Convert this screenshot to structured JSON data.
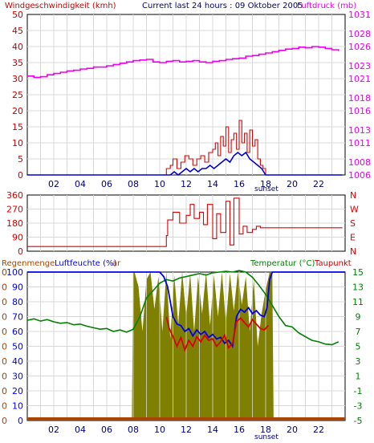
{
  "header": {
    "wind_label": "Windgeschwindigkeit (kmh)",
    "title": "Current last 24 hours : 09 Oktober 2005",
    "pressure_label": "Luftdruck (mb)"
  },
  "panel3_header": {
    "rain_label": "Regenmenge",
    "humidity_label": "Luftfeuchte (%)",
    "overlap_glyph": "ar",
    "temp_label": "Temperatur (°C)",
    "dew_label": "Taupunkt"
  },
  "x_ticks": [
    "02",
    "04",
    "06",
    "08",
    "10",
    "12",
    "14",
    "16",
    "18",
    "20",
    "22"
  ],
  "sunset_label": "sunset",
  "colors": {
    "wind_axis": "#cc0000",
    "pressure": "#ee00ee",
    "wind_avg": "#0000cc",
    "wind_gust": "#dd0000",
    "direction": "#dd0000",
    "humidity_fill": "#808000",
    "temperature": "#008000",
    "dewpoint": "#dd0000",
    "humidity_line": "#0000ee",
    "rain": "#aa4400"
  },
  "chart_data": [
    {
      "type": "line",
      "name": "wind-and-pressure",
      "x_unit": "hour",
      "xlim": [
        0,
        24
      ],
      "left_axis": {
        "label": "Windgeschwindigkeit (kmh)",
        "ylim": [
          0,
          50
        ],
        "ticks": [
          0,
          5,
          10,
          15,
          20,
          25,
          30,
          35,
          40,
          45,
          50
        ]
      },
      "right_axis": {
        "label": "Luftdruck (mb)",
        "ylim": [
          1006,
          1031
        ],
        "ticks": [
          1006,
          1008,
          1011,
          1013,
          1016,
          1018,
          1021,
          1023,
          1026,
          1028,
          1031
        ]
      },
      "series": [
        {
          "name": "Luftdruck (mb)",
          "axis": "right",
          "x": [
            0,
            0.5,
            1,
            1.5,
            2,
            2.5,
            3,
            3.5,
            4,
            4.5,
            5,
            5.5,
            6,
            6.5,
            7,
            7.5,
            8,
            8.5,
            9,
            9.5,
            10,
            10.5,
            11,
            11.5,
            12,
            12.5,
            13,
            13.5,
            14,
            14.5,
            15,
            15.5,
            16,
            16.5,
            17,
            17.5,
            18,
            18.5,
            19,
            19.5,
            20,
            20.5,
            21,
            21.5,
            22,
            22.5,
            23,
            23.5
          ],
          "y": [
            1021.4,
            1021.2,
            1021.3,
            1021.6,
            1021.8,
            1022,
            1022.2,
            1022.3,
            1022.5,
            1022.6,
            1022.8,
            1022.8,
            1023,
            1023.2,
            1023.4,
            1023.6,
            1023.8,
            1023.9,
            1024,
            1023.6,
            1023.5,
            1023.7,
            1023.8,
            1023.6,
            1023.7,
            1023.8,
            1023.6,
            1023.5,
            1023.7,
            1023.8,
            1024,
            1024.1,
            1024.2,
            1024.5,
            1024.6,
            1024.8,
            1025,
            1025.2,
            1025.4,
            1025.6,
            1025.7,
            1025.9,
            1025.8,
            1026,
            1025.9,
            1025.7,
            1025.5,
            1025.3
          ]
        },
        {
          "name": "wind-gust",
          "axis": "left",
          "x": [
            0,
            10.3,
            10.5,
            10.8,
            11,
            11.3,
            11.6,
            11.9,
            12.2,
            12.5,
            12.8,
            13.1,
            13.4,
            13.7,
            14,
            14.2,
            14.4,
            14.6,
            14.8,
            15,
            15.2,
            15.4,
            15.6,
            15.8,
            16,
            16.2,
            16.4,
            16.6,
            16.8,
            17,
            17.2,
            17.4,
            17.6,
            17.8,
            18,
            23.8
          ],
          "y": [
            0,
            0,
            2,
            3,
            5,
            2,
            4,
            6,
            5,
            3,
            5,
            6,
            4,
            7,
            8,
            10,
            6,
            12,
            9,
            15,
            7,
            11,
            13,
            8,
            17,
            10,
            13,
            7,
            14,
            9,
            11,
            5,
            3,
            2,
            0,
            0
          ]
        },
        {
          "name": "wind-average",
          "axis": "left",
          "x": [
            0,
            10.8,
            11.1,
            11.4,
            11.7,
            12,
            12.3,
            12.6,
            12.9,
            13.2,
            13.5,
            13.8,
            14.1,
            14.4,
            14.7,
            15,
            15.3,
            15.6,
            15.9,
            16.2,
            16.5,
            16.8,
            17.1,
            17.4,
            17.7,
            18,
            23.8
          ],
          "y": [
            0,
            0,
            1,
            0,
            1,
            2,
            1,
            2,
            1,
            2,
            2,
            3,
            2,
            3,
            4,
            5,
            4,
            6,
            7,
            6,
            7,
            5,
            4,
            3,
            2,
            0,
            0
          ]
        }
      ]
    },
    {
      "type": "line",
      "name": "wind-direction",
      "x_unit": "hour",
      "xlim": [
        0,
        24
      ],
      "ylim": [
        0,
        360
      ],
      "y_ticks": [
        0,
        90,
        180,
        270,
        360
      ],
      "compass": [
        "N",
        "W",
        "S",
        "E",
        "N"
      ],
      "series": [
        {
          "name": "direction",
          "x": [
            0,
            0.5,
            3,
            6,
            8,
            10,
            10.5,
            10.6,
            11,
            11.5,
            12,
            12.3,
            12.6,
            13,
            13.3,
            13.6,
            14,
            14.3,
            14.6,
            15,
            15.3,
            15.6,
            16,
            16.3,
            16.6,
            17,
            17.3,
            17.6,
            18,
            23.8
          ],
          "y": [
            30,
            30,
            30,
            30,
            30,
            30,
            100,
            200,
            250,
            180,
            230,
            300,
            210,
            250,
            170,
            300,
            80,
            240,
            120,
            320,
            40,
            340,
            110,
            160,
            120,
            140,
            160,
            150,
            150,
            150
          ]
        }
      ]
    },
    {
      "type": "area",
      "name": "rain-humidity-temperature",
      "x_unit": "hour",
      "xlim": [
        0,
        24
      ],
      "left_axis": {
        "labels": [
          "Regenmenge",
          "Luftfeuchte (%)"
        ],
        "ylim": [
          0,
          100
        ],
        "ticks": [
          0,
          10,
          20,
          30,
          40,
          50,
          60,
          70,
          80,
          90,
          100
        ],
        "rain_ticks": [
          0,
          0,
          0,
          0,
          0,
          0,
          0,
          0,
          0,
          0,
          0
        ]
      },
      "right_axis": {
        "label": "Temperatur (°C)",
        "ylim": [
          -5,
          15
        ],
        "ticks": [
          -5,
          -3,
          -1,
          1,
          3,
          5,
          7,
          9,
          11,
          13,
          15
        ]
      },
      "series": [
        {
          "name": "Luftfeuchte (%)",
          "kind": "fill",
          "x": [
            0,
            7.9,
            8,
            8.1,
            8.4,
            8.7,
            9,
            9.3,
            9.6,
            9.9,
            10.2,
            10.5,
            10.8,
            11.1,
            11.4,
            11.7,
            12,
            12.3,
            12.6,
            12.9,
            13.2,
            13.5,
            13.8,
            14.1,
            14.4,
            14.7,
            15,
            15.3,
            15.6,
            15.9,
            16.2,
            16.5,
            16.8,
            17.1,
            17.4,
            17.7,
            18,
            18.3,
            18.5,
            18.6,
            24
          ],
          "y": [
            0,
            0,
            100,
            100,
            90,
            60,
            95,
            100,
            75,
            97,
            60,
            100,
            55,
            98,
            65,
            100,
            70,
            99,
            60,
            97,
            72,
            100,
            64,
            98,
            70,
            100,
            66,
            99,
            74,
            100,
            78,
            97,
            60,
            95,
            50,
            72,
            88,
            100,
            100,
            0,
            0
          ]
        },
        {
          "name": "Temperatur (°C)",
          "kind": "line",
          "axis": "right",
          "x": [
            0,
            0.5,
            1,
            1.5,
            2,
            2.5,
            3,
            3.5,
            4,
            4.5,
            5,
            5.5,
            6,
            6.5,
            7,
            7.5,
            8,
            8.5,
            9,
            9.5,
            10,
            10.5,
            11,
            11.5,
            12,
            12.5,
            13,
            13.5,
            14,
            14.5,
            15,
            15.5,
            16,
            16.5,
            17,
            17.5,
            18,
            18.5,
            19,
            19.5,
            20,
            20.5,
            21,
            21.5,
            22,
            22.5,
            23,
            23.5
          ],
          "y": [
            8.5,
            8.7,
            8.4,
            8.6,
            8.3,
            8.1,
            8.2,
            7.9,
            8,
            7.7,
            7.5,
            7.3,
            7.4,
            7,
            7.2,
            6.9,
            7.3,
            9,
            11.5,
            12.5,
            13.5,
            14,
            13.8,
            14.2,
            14.4,
            14.6,
            14.8,
            14.6,
            14.9,
            15,
            15.1,
            15,
            15.2,
            15,
            14.3,
            13.2,
            12,
            10.5,
            9,
            7.8,
            7.6,
            6.8,
            6.3,
            5.8,
            5.6,
            5.3,
            5.2,
            5.6
          ]
        },
        {
          "name": "Taupunkt",
          "kind": "line",
          "axis": "right",
          "x": [
            10.5,
            10.7,
            11,
            11.3,
            11.6,
            11.9,
            12.2,
            12.5,
            12.8,
            13.1,
            13.4,
            13.7,
            14,
            14.3,
            14.6,
            14.9,
            15.2,
            15.5,
            15.8,
            16.1,
            16.4,
            16.7,
            17,
            17.3,
            17.6,
            17.9,
            18.2
          ],
          "y": [
            9,
            7.5,
            6.3,
            5,
            6.2,
            4.5,
            5.8,
            5,
            6.3,
            5.6,
            6.5,
            5.8,
            6,
            5,
            5.6,
            6.5,
            4.8,
            5.4,
            8.3,
            8.8,
            8.2,
            7.6,
            8.6,
            8,
            7.4,
            7.2,
            7.8
          ]
        },
        {
          "name": "humidity-line",
          "kind": "line",
          "axis": "left",
          "x": [
            0,
            10,
            10.3,
            10.6,
            10.8,
            11,
            11.3,
            11.6,
            11.9,
            12.2,
            12.5,
            12.8,
            13.1,
            13.4,
            13.7,
            14,
            14.3,
            14.6,
            14.9,
            15.2,
            15.5,
            15.8,
            16.1,
            16.4,
            16.7,
            17,
            17.3,
            17.6,
            17.9,
            18.1,
            18.3,
            18.5,
            24
          ],
          "y": [
            100,
            100,
            97,
            90,
            80,
            70,
            65,
            64,
            60,
            62,
            57,
            61,
            58,
            60,
            56,
            58,
            55,
            56,
            52,
            54,
            50,
            70,
            75,
            73,
            76,
            72,
            74,
            71,
            70,
            76,
            95,
            100,
            100
          ]
        },
        {
          "name": "Regenmenge",
          "kind": "bars",
          "x": [
            0,
            24
          ],
          "y": [
            0,
            0
          ]
        }
      ]
    }
  ]
}
